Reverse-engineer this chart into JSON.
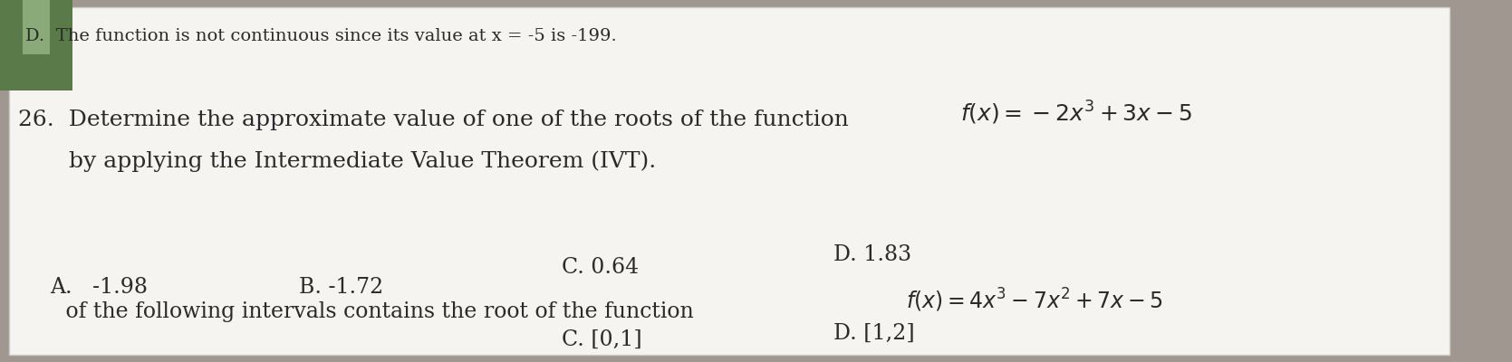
{
  "bg_color": "#b8b5b0",
  "paper_color": "#f5f4f2",
  "text_color": "#2a2a2a",
  "line1": "D.  The function is not continuous since its value at x = -5 is -199.",
  "line2_q": "26.  Determine the approximate value of one of the roots of the function",
  "line2_func": "$f(x) = -2x^3 + 3x - 5$",
  "line3": "       by applying the Intermediate Value Theorem (IVT).",
  "ans_A": "A.   -1.98",
  "ans_B": "B. -1.72",
  "ans_C": "C. 0.64",
  "ans_D1": "D. 1.83",
  "line_bot_left": "       of the following intervals contains the root of the function",
  "line_bot_func": "$f(x) = 4x^3 - 7x^2 + 7x - 5$",
  "ans_bot_C": "C. [0,1]",
  "ans_D2": "D. [1,2]",
  "font_size_line1": 14,
  "font_size_main": 18,
  "font_size_ans": 17
}
